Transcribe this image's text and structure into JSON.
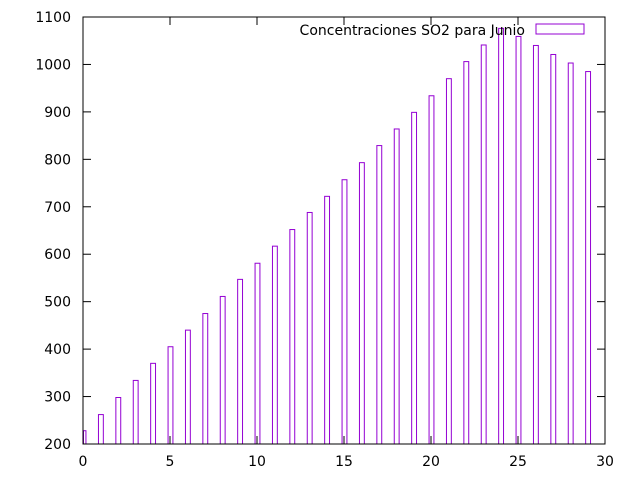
{
  "chart_data": {
    "type": "bar",
    "x": [
      0,
      1,
      2,
      3,
      4,
      5,
      6,
      7,
      8,
      9,
      10,
      11,
      12,
      13,
      14,
      15,
      16,
      17,
      18,
      19,
      20,
      21,
      22,
      23,
      24,
      25,
      26,
      27,
      28,
      29
    ],
    "series": [
      {
        "name": "Concentraciones SO2 para Junio",
        "values": [
          228,
          262,
          298,
          334,
          370,
          405,
          440,
          475,
          511,
          547,
          581,
          617,
          652,
          688,
          722,
          757,
          793,
          829,
          864,
          899,
          934,
          970,
          1006,
          1041,
          1076,
          1059,
          1040,
          1021,
          1003,
          985
        ]
      }
    ],
    "xlim": [
      0,
      30
    ],
    "ylim": [
      200,
      1100
    ],
    "xticks": [
      "0",
      "5",
      "10",
      "15",
      "20",
      "25",
      "30"
    ],
    "yticks": [
      "200",
      "300",
      "400",
      "500",
      "600",
      "700",
      "800",
      "900",
      "1000",
      "1100"
    ],
    "title": "",
    "xlabel": "",
    "ylabel": "",
    "grid": false,
    "legend_position": "top-right",
    "bar_color": "#9400d3"
  }
}
